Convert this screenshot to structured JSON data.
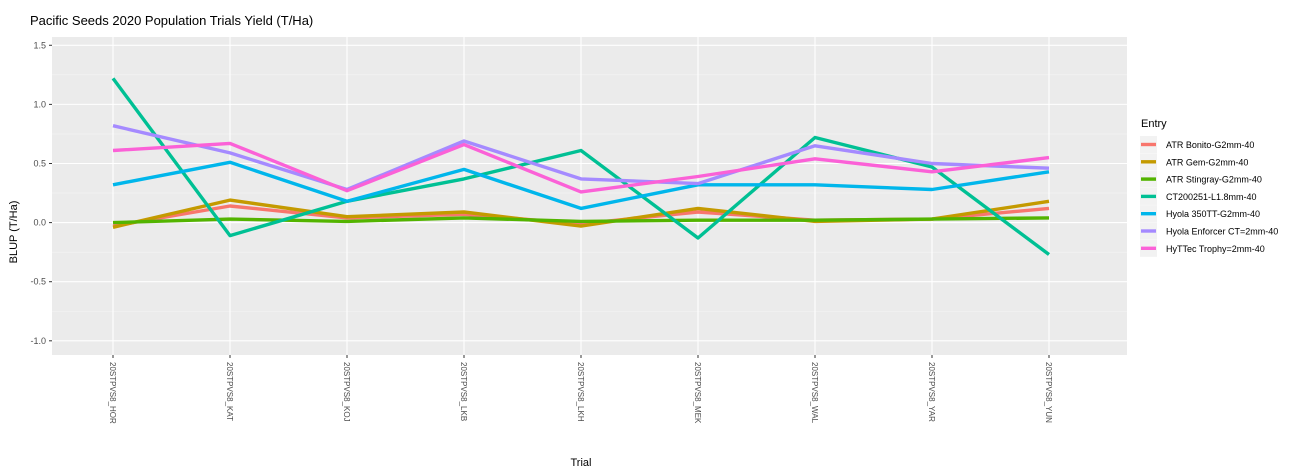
{
  "chart_data": {
    "type": "line",
    "title": "Pacific Seeds 2020 Population Trials Yield (T/Ha)",
    "xlabel": "Trial",
    "ylabel": "BLUP (T/Ha)",
    "ylim": [
      -1.12,
      1.57
    ],
    "yticks": [
      1.5,
      1.0,
      0.5,
      0.0,
      -0.5,
      -1.0
    ],
    "ytick_labels": [
      "1.5",
      "1.0",
      "0.5",
      "0.0",
      "-0.5",
      "-1.0"
    ],
    "categories": [
      "20STPVS8_HOR",
      "20STPVS8_KAT",
      "20STPVS8_KOJ",
      "20STPVS8_LKB",
      "20STPVS8_LKH",
      "20STPVS8_MEK",
      "20STPVS8_WAL",
      "20STPVS8_YAR",
      "20STPVS8_YUN"
    ],
    "grid": true,
    "legend_position": "right",
    "legend_title": "Entry",
    "series": [
      {
        "name": "ATR Bonito-G2mm-40",
        "color": "#F8766D",
        "values": [
          -0.03,
          0.14,
          0.04,
          0.07,
          -0.01,
          0.09,
          0.02,
          0.03,
          0.12
        ]
      },
      {
        "name": "ATR Gem-G2mm-40",
        "color": "#C49A00",
        "values": [
          -0.04,
          0.19,
          0.05,
          0.09,
          -0.03,
          0.12,
          0.01,
          0.03,
          0.18
        ]
      },
      {
        "name": "ATR Stingray-G2mm-40",
        "color": "#53B400",
        "values": [
          0.0,
          0.03,
          0.01,
          0.04,
          0.01,
          0.02,
          0.02,
          0.03,
          0.04
        ]
      },
      {
        "name": "CT200251-L1.8mm-40",
        "color": "#00C094",
        "values": [
          1.22,
          -0.11,
          0.18,
          0.37,
          0.61,
          -0.13,
          0.72,
          0.47,
          -0.27
        ]
      },
      {
        "name": "Hyola 350TT-G2mm-40",
        "color": "#00B6EB",
        "values": [
          0.32,
          0.51,
          0.18,
          0.45,
          0.12,
          0.32,
          0.32,
          0.28,
          0.43
        ]
      },
      {
        "name": "Hyola Enforcer CT=2mm-40",
        "color": "#A58AFF",
        "values": [
          0.82,
          0.59,
          0.28,
          0.69,
          0.37,
          0.33,
          0.65,
          0.5,
          0.46
        ]
      },
      {
        "name": "HyTTec Trophy=2mm-40",
        "color": "#FB61D7",
        "values": [
          0.61,
          0.67,
          0.27,
          0.66,
          0.26,
          0.39,
          0.54,
          0.43,
          0.55
        ]
      }
    ]
  }
}
